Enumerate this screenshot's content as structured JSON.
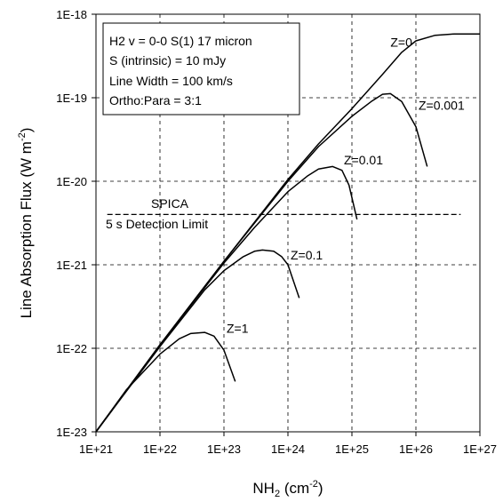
{
  "chart_data": {
    "type": "line",
    "xscale": "log",
    "yscale": "log",
    "xlim": [
      1e+21,
      1e+27
    ],
    "ylim": [
      1e-23,
      1e-18
    ],
    "grid": true,
    "xlabel": {
      "base": "NH",
      "sub": "2",
      "unit_prefix": " (cm",
      "unit_sup": "-2",
      "unit_suffix": ")"
    },
    "ylabel": {
      "text": "Line Absorption Flux (W m",
      "sup": "-2",
      "suffix": ")"
    },
    "x_ticks": [
      {
        "value": 1e+21,
        "label": "1E+21"
      },
      {
        "value": 1e+22,
        "label": "1E+22"
      },
      {
        "value": 1e+23,
        "label": "1E+23"
      },
      {
        "value": 1e+24,
        "label": "1E+24"
      },
      {
        "value": 1e+25,
        "label": "1E+25"
      },
      {
        "value": 1e+26,
        "label": "1E+26"
      },
      {
        "value": 1e+27,
        "label": "1E+27"
      }
    ],
    "y_ticks": [
      {
        "value": 1e-23,
        "label": "1E-23"
      },
      {
        "value": 1e-22,
        "label": "1E-22"
      },
      {
        "value": 1e-21,
        "label": "1E-21"
      },
      {
        "value": 1e-20,
        "label": "1E-20"
      },
      {
        "value": 1e-19,
        "label": "1E-19"
      },
      {
        "value": 1e-18,
        "label": "1E-18"
      }
    ],
    "info_box": [
      "H2 v = 0-0 S(1) 17 micron",
      "S (intrinsic) = 10 mJy",
      "Line Width = 100 km/s",
      "Ortho:Para = 3:1"
    ],
    "detection_limit": {
      "y": 4e-21,
      "x_range": [
        1.5e+21,
        5e+26
      ],
      "label_line1": "SPICA",
      "label_line2": "5 s Detection Limit"
    },
    "series": [
      {
        "name": "Z=0",
        "x": [
          1e+21,
          1e+22,
          1e+23,
          1e+24,
          3e+24,
          1e+25,
          3e+25,
          6e+25,
          1e+26,
          2e+26,
          4e+26,
          1e+27
        ],
        "y": [
          1e-23,
          1.1e-22,
          1.1e-21,
          1.05e-20,
          2.8e-20,
          7.4e-20,
          1.9e-19,
          3.5e-19,
          4.8e-19,
          5.6e-19,
          5.8e-19,
          5.8e-19
        ]
      },
      {
        "name": "Z=0.001",
        "x": [
          1e+21,
          1e+22,
          1e+23,
          1e+24,
          3e+24,
          1e+25,
          2e+25,
          3e+25,
          4e+25,
          6e+25,
          1e+26,
          1.5e+26
        ],
        "y": [
          1e-23,
          1.1e-22,
          1.1e-21,
          1e-20,
          2.6e-20,
          6e-20,
          9e-20,
          1.1e-19,
          1.12e-19,
          9e-20,
          4.5e-20,
          1.5e-20
        ]
      },
      {
        "name": "Z=0.01",
        "x": [
          1e+21,
          1e+22,
          1e+23,
          3e+23,
          1e+24,
          2e+24,
          3e+24,
          5e+24,
          7e+24,
          9e+24,
          1.2e+25
        ],
        "y": [
          1e-23,
          1.1e-22,
          1.05e-21,
          2.8e-21,
          7.5e-21,
          1.15e-20,
          1.4e-20,
          1.5e-20,
          1.35e-20,
          9e-21,
          3.5e-21
        ]
      },
      {
        "name": "Z=0.1",
        "x": [
          1e+21,
          1e+22,
          5e+22,
          1e+23,
          2e+23,
          3e+23,
          4e+23,
          6e+23,
          8e+23,
          1e+24,
          1.5e+24
        ],
        "y": [
          1e-23,
          1.05e-22,
          5e-22,
          8.5e-22,
          1.25e-21,
          1.45e-21,
          1.5e-21,
          1.45e-21,
          1.25e-21,
          1e-21,
          4e-22
        ]
      },
      {
        "name": "Z=1",
        "x": [
          1e+21,
          3e+21,
          1e+22,
          2e+22,
          3e+22,
          5e+22,
          7e+22,
          1e+23,
          1.5e+23
        ],
        "y": [
          1e-23,
          3.2e-23,
          8.5e-23,
          1.3e-22,
          1.5e-22,
          1.55e-22,
          1.4e-22,
          9.5e-23,
          4e-23
        ]
      }
    ],
    "series_label_anchors": [
      {
        "name": "Z=0",
        "x": 4e+25,
        "y": 3.7e-19
      },
      {
        "name": "Z=0.001",
        "x": 1.1e+26,
        "y": 6.5e-20
      },
      {
        "name": "Z=0.01",
        "x": 7.5e+24,
        "y": 1.45e-20
      },
      {
        "name": "Z=0.1",
        "x": 1.1e+24,
        "y": 1.05e-21
      },
      {
        "name": "Z=1",
        "x": 1.1e+23,
        "y": 1.4e-22
      }
    ]
  }
}
